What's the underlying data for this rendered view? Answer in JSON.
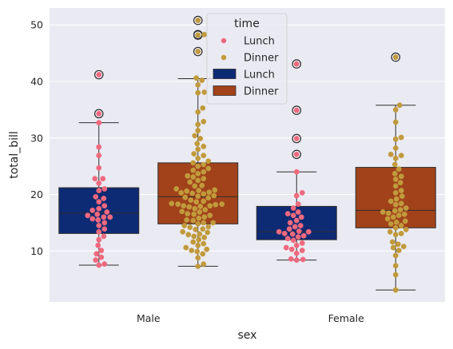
{
  "chart_data": {
    "type": "box-swarm",
    "xlabel": "sex",
    "ylabel": "total_bill",
    "categories": [
      "Male",
      "Female"
    ],
    "yticks": [
      10,
      20,
      30,
      40,
      50
    ],
    "ylim": [
      1.0,
      53.0
    ],
    "grid": true,
    "legend": {
      "title": "time",
      "placement": "top-center",
      "entries": [
        {
          "label": "Lunch",
          "kind": "point",
          "color": "#f0697e"
        },
        {
          "label": "Dinner",
          "kind": "point",
          "color": "#c19a3c"
        },
        {
          "label": "Lunch",
          "kind": "box",
          "color": "#0d2a74"
        },
        {
          "label": "Dinner",
          "kind": "box",
          "color": "#a1421a"
        }
      ]
    },
    "boxes": [
      {
        "sex": "Male",
        "time": "Lunch",
        "color": "#0d2a74",
        "whislo": 7.5,
        "q1": 13.1,
        "median": 16.7,
        "q3": 21.2,
        "whishi": 32.7,
        "fliers": [
          34.3,
          41.2
        ]
      },
      {
        "sex": "Male",
        "time": "Dinner",
        "color": "#a1421a",
        "whislo": 7.3,
        "q1": 14.8,
        "median": 19.6,
        "q3": 25.6,
        "whishi": 40.5,
        "fliers": [
          45.3,
          48.2,
          48.3,
          50.8
        ]
      },
      {
        "sex": "Female",
        "time": "Lunch",
        "color": "#0d2a74",
        "whislo": 8.4,
        "q1": 12.0,
        "median": 13.4,
        "q3": 17.9,
        "whishi": 24.0,
        "fliers": [
          27.1,
          29.9,
          34.9,
          43.1
        ]
      },
      {
        "sex": "Female",
        "time": "Dinner",
        "color": "#a1421a",
        "whislo": 3.1,
        "q1": 14.1,
        "median": 17.2,
        "q3": 24.8,
        "whishi": 35.8,
        "fliers": [
          44.3
        ]
      }
    ],
    "swarm": [
      {
        "sex": "Male",
        "time": "Lunch",
        "color": "#f0697e",
        "values": [
          7.5,
          7.7,
          8.4,
          8.9,
          9.5,
          10.1,
          11.0,
          12.0,
          12.6,
          13.4,
          13.9,
          14.5,
          15.0,
          15.5,
          15.7,
          16.0,
          16.0,
          16.3,
          16.5,
          16.9,
          17.2,
          17.5,
          18.0,
          18.7,
          19.3,
          19.6,
          20.7,
          21.0,
          22.0,
          22.8,
          22.8,
          24.7,
          26.9,
          28.4,
          32.7,
          34.3,
          41.2
        ]
      },
      {
        "sex": "Male",
        "time": "Dinner",
        "color": "#c19a3c",
        "values": [
          7.3,
          7.7,
          8.8,
          9.5,
          9.9,
          10.1,
          10.3,
          10.6,
          11.0,
          11.3,
          11.6,
          12.0,
          12.4,
          12.6,
          12.9,
          13.0,
          13.3,
          13.4,
          13.8,
          13.9,
          14.2,
          14.3,
          14.5,
          14.8,
          15.0,
          15.0,
          15.4,
          15.5,
          15.8,
          16.0,
          16.3,
          16.5,
          16.6,
          16.9,
          17.0,
          17.3,
          17.5,
          17.8,
          17.9,
          18.0,
          18.0,
          18.2,
          18.3,
          18.3,
          18.4,
          18.7,
          18.8,
          19.0,
          19.4,
          19.5,
          19.7,
          19.8,
          20.1,
          20.2,
          20.3,
          20.4,
          20.6,
          20.7,
          20.8,
          21.0,
          21.5,
          21.6,
          22.2,
          22.5,
          22.8,
          23.1,
          23.3,
          23.7,
          24.0,
          24.3,
          24.6,
          25.0,
          25.3,
          25.6,
          25.9,
          26.4,
          26.9,
          27.2,
          28.0,
          28.5,
          29.0,
          29.9,
          30.4,
          31.3,
          32.4,
          32.9,
          34.6,
          35.3,
          38.0,
          38.1,
          39.4,
          40.2,
          40.6,
          45.3,
          48.2,
          48.3,
          50.8
        ]
      },
      {
        "sex": "Female",
        "time": "Lunch",
        "color": "#f0697e",
        "values": [
          8.4,
          8.5,
          8.6,
          9.6,
          10.1,
          10.3,
          10.6,
          11.0,
          11.4,
          11.9,
          12.2,
          12.5,
          12.7,
          13.0,
          13.1,
          13.4,
          13.4,
          13.5,
          13.9,
          14.3,
          14.5,
          15.0,
          15.4,
          16.0,
          16.3,
          16.6,
          16.9,
          17.6,
          18.3,
          19.8,
          20.3,
          24.0,
          27.1,
          29.9,
          34.9,
          43.1
        ]
      },
      {
        "sex": "Female",
        "time": "Dinner",
        "color": "#c19a3c",
        "values": [
          3.1,
          5.8,
          7.4,
          9.2,
          10.1,
          10.6,
          10.8,
          11.2,
          11.6,
          12.9,
          13.1,
          13.4,
          13.8,
          14.1,
          14.5,
          14.8,
          15.1,
          15.3,
          15.7,
          16.0,
          16.3,
          16.5,
          16.7,
          16.9,
          17.1,
          17.3,
          17.6,
          18.2,
          18.4,
          18.8,
          19.2,
          19.7,
          20.3,
          20.7,
          21.5,
          22.1,
          22.7,
          23.2,
          23.7,
          24.5,
          25.3,
          26.4,
          26.9,
          27.1,
          28.2,
          29.8,
          30.1,
          32.8,
          35.0,
          35.8,
          44.3
        ]
      }
    ]
  }
}
